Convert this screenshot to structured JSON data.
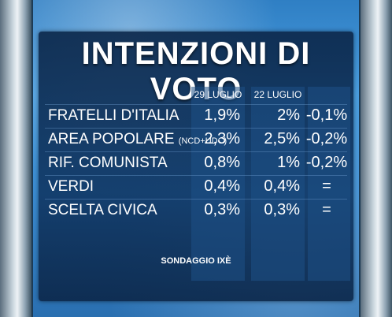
{
  "title": "INTENZIONI DI VOTO",
  "columns": [
    "29 LUGLIO",
    "22 LUGLIO"
  ],
  "rows": [
    {
      "party": "FRATELLI D'ITALIA",
      "note": "",
      "v1": "1,9%",
      "v2": "2%",
      "diff": "-0,1%"
    },
    {
      "party": "AREA POPOLARE ",
      "note": "(NCD+UDC)",
      "v1": "2,3%",
      "v2": "2,5%",
      "diff": "-0,2%"
    },
    {
      "party": "RIF. COMUNISTA",
      "note": "",
      "v1": "0,8%",
      "v2": "1%",
      "diff": "-0,2%"
    },
    {
      "party": "VERDI",
      "note": "",
      "v1": "0,4%",
      "v2": "0,4%",
      "diff": "="
    },
    {
      "party": "SCELTA CIVICA",
      "note": "",
      "v1": "0,3%",
      "v2": "0,3%",
      "diff": "="
    }
  ],
  "source": "SONDAGGIO IXÈ",
  "colors": {
    "panel": "#0c284b",
    "text": "#ffffff",
    "background": "#3b8cd2"
  }
}
